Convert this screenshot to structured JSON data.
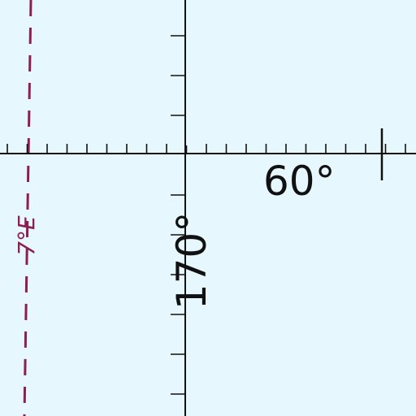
{
  "map": {
    "background_color": "#e6f7fd",
    "grid_line_color": "#111111",
    "isogonic_line_color": "#8b1f4f",
    "labels": {
      "latitude": "60°",
      "longitude": "170°",
      "isogonic_variation": "7°E"
    },
    "features": [
      "latitude-line-with-minute-ticks",
      "longitude-line-with-minute-ticks",
      "isogonic-line-dashed"
    ]
  }
}
